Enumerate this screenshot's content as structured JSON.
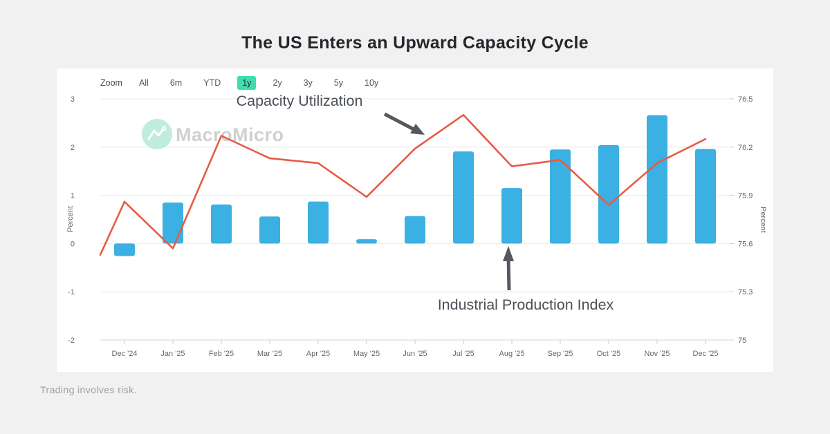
{
  "page": {
    "title": "The US Enters an Upward Capacity Cycle",
    "disclaimer": "Trading involves risk."
  },
  "toolbar": {
    "zoom_label": "Zoom",
    "ranges": [
      {
        "label": "All",
        "selected": false
      },
      {
        "label": "6m",
        "selected": false
      },
      {
        "label": "YTD",
        "selected": false
      },
      {
        "label": "1y",
        "selected": true
      },
      {
        "label": "2y",
        "selected": false
      },
      {
        "label": "3y",
        "selected": false
      },
      {
        "label": "5y",
        "selected": false
      },
      {
        "label": "10y",
        "selected": false
      }
    ],
    "selected_color": "#3eddad"
  },
  "watermark": {
    "brand": "MacroMicro",
    "icon": "macromicro-logo-icon",
    "circle_color": "#bfecdc",
    "text_color": "#d0d0d0"
  },
  "annotations": {
    "line_label": "Capacity Utilization",
    "bar_label": "Industrial Production Index"
  },
  "chart_data": {
    "type": "combo (bar + line)",
    "categories": [
      "Dec '24",
      "Jan '25",
      "Feb '25",
      "Mar '25",
      "Apr '25",
      "May '25",
      "Jun '25",
      "Jul '25",
      "Aug '25",
      "Sep '25",
      "Oct '25",
      "Nov '25",
      "Dec '25"
    ],
    "series": [
      {
        "name": "Industrial Production Index",
        "type": "bar",
        "axis": "left",
        "color": "#3bb0e2",
        "values": [
          -0.26,
          0.85,
          0.81,
          0.56,
          0.87,
          0.09,
          0.57,
          1.91,
          1.15,
          1.95,
          2.04,
          2.66,
          1.96
        ]
      },
      {
        "name": "Capacity Utilization",
        "type": "line",
        "axis": "right",
        "color": "#e85b45",
        "lead_in_value": 75.53,
        "values": [
          75.86,
          75.57,
          76.27,
          76.13,
          76.1,
          75.89,
          76.19,
          76.4,
          76.08,
          76.12,
          75.84,
          76.1,
          76.25
        ]
      }
    ],
    "left_axis": {
      "title": "Percent",
      "min": -2,
      "max": 3,
      "ticks": [
        "3",
        "2",
        "1",
        "0",
        "-1",
        "-2"
      ]
    },
    "right_axis": {
      "title": "Percent",
      "min": 75,
      "max": 76.5,
      "ticks": [
        "76.5",
        "76.2",
        "75.9",
        "75.6",
        "75.3",
        "75"
      ]
    },
    "grid": true,
    "legend": "none",
    "grid_color": "#e8e8e8",
    "axis_text_color": "#666666"
  }
}
